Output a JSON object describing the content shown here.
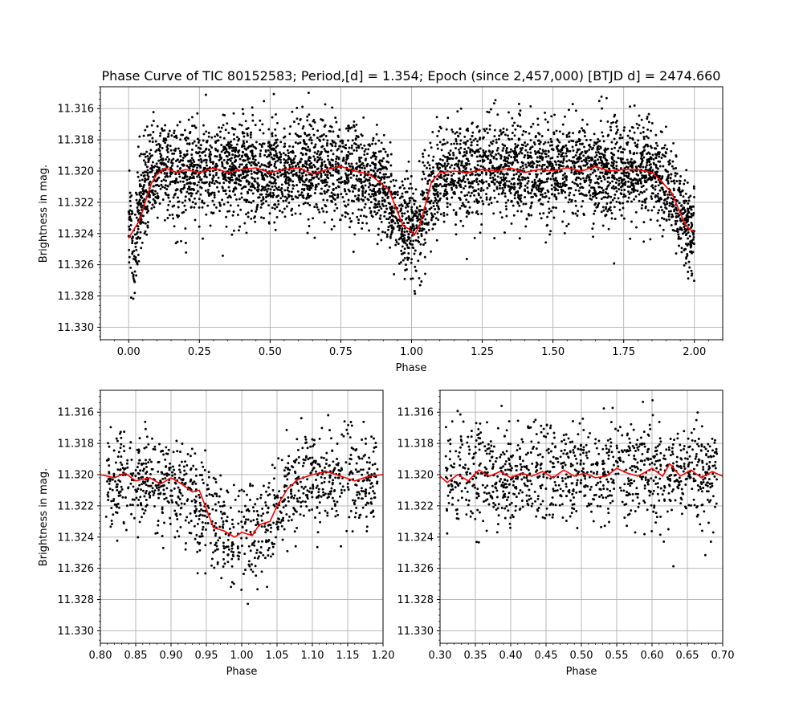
{
  "chart_data": [
    {
      "id": "full",
      "type": "scatter",
      "title": "Phase Curve of TIC 80152583; Period,[d] =   1.354; Epoch (since 2,457,000) [BTJD d] = 2474.660",
      "xlabel": "Phase",
      "ylabel": "Brightness in mag.",
      "xlim": [
        -0.1,
        2.1
      ],
      "ylim": [
        11.3308,
        11.3146
      ],
      "y_inverted": true,
      "xticks": [
        0.0,
        0.25,
        0.5,
        0.75,
        1.0,
        1.25,
        1.5,
        1.75,
        2.0
      ],
      "xtick_labels": [
        "0.00",
        "0.25",
        "0.50",
        "0.75",
        "1.00",
        "1.25",
        "1.50",
        "1.75",
        "2.00"
      ],
      "yticks": [
        11.316,
        11.318,
        11.32,
        11.322,
        11.324,
        11.326,
        11.328,
        11.33
      ],
      "ytick_labels": [
        "11.316",
        "11.318",
        "11.320",
        "11.322",
        "11.324",
        "11.326",
        "11.328",
        "11.330"
      ],
      "grid": true,
      "series": [
        {
          "style": "points",
          "color": "#000000",
          "points": [
            [
              0.01,
              11.3235
            ],
            [
              0.02,
              11.3265
            ],
            [
              0.03,
              11.3232
            ],
            [
              0.05,
              11.3215
            ],
            [
              0.08,
              11.3202
            ],
            [
              0.12,
              11.3195
            ],
            [
              0.2,
              11.3201
            ],
            [
              0.3,
              11.3199
            ],
            [
              0.4,
              11.3198
            ],
            [
              0.5,
              11.3201
            ],
            [
              0.6,
              11.3199
            ],
            [
              0.7,
              11.3198
            ],
            [
              0.8,
              11.32
            ],
            [
              0.9,
              11.3209
            ],
            [
              0.95,
              11.3228
            ],
            [
              0.98,
              11.324
            ],
            [
              1.0,
              11.3236
            ],
            [
              1.02,
              11.3241
            ],
            [
              1.05,
              11.3222
            ],
            [
              1.1,
              11.3203
            ],
            [
              1.2,
              11.3201
            ],
            [
              1.3,
              11.32
            ],
            [
              1.4,
              11.3199
            ],
            [
              1.5,
              11.32
            ],
            [
              1.6,
              11.3198
            ],
            [
              1.7,
              11.32
            ],
            [
              1.8,
              11.3199
            ],
            [
              1.9,
              11.3204
            ],
            [
              1.95,
              11.3224
            ],
            [
              1.98,
              11.3235
            ],
            [
              2.0,
              11.3238
            ]
          ]
        },
        {
          "style": "line",
          "color": "#ff0000",
          "points": [
            [
              0.0,
              11.3243
            ],
            [
              0.02,
              11.3237
            ],
            [
              0.04,
              11.3231
            ],
            [
              0.06,
              11.3219
            ],
            [
              0.08,
              11.3208
            ],
            [
              0.1,
              11.3202
            ],
            [
              0.13,
              11.3198
            ],
            [
              0.17,
              11.3201
            ],
            [
              0.2,
              11.3199
            ],
            [
              0.25,
              11.3201
            ],
            [
              0.3,
              11.3198
            ],
            [
              0.35,
              11.3201
            ],
            [
              0.4,
              11.3199
            ],
            [
              0.45,
              11.3198
            ],
            [
              0.5,
              11.3201
            ],
            [
              0.55,
              11.3199
            ],
            [
              0.6,
              11.3198
            ],
            [
              0.65,
              11.3202
            ],
            [
              0.7,
              11.3199
            ],
            [
              0.75,
              11.3197
            ],
            [
              0.8,
              11.32
            ],
            [
              0.85,
              11.3202
            ],
            [
              0.88,
              11.3206
            ],
            [
              0.92,
              11.3212
            ],
            [
              0.95,
              11.3226
            ],
            [
              0.97,
              11.3235
            ],
            [
              0.99,
              11.3237
            ],
            [
              1.01,
              11.3241
            ],
            [
              1.03,
              11.3234
            ],
            [
              1.05,
              11.3221
            ],
            [
              1.07,
              11.3207
            ],
            [
              1.1,
              11.3201
            ],
            [
              1.15,
              11.32
            ],
            [
              1.2,
              11.3201
            ],
            [
              1.25,
              11.3199
            ],
            [
              1.3,
              11.32
            ],
            [
              1.35,
              11.3198
            ],
            [
              1.4,
              11.3201
            ],
            [
              1.45,
              11.3199
            ],
            [
              1.5,
              11.32
            ],
            [
              1.55,
              11.3198
            ],
            [
              1.6,
              11.32
            ],
            [
              1.65,
              11.3197
            ],
            [
              1.7,
              11.32
            ],
            [
              1.75,
              11.3199
            ],
            [
              1.8,
              11.3199
            ],
            [
              1.85,
              11.3201
            ],
            [
              1.88,
              11.3206
            ],
            [
              1.92,
              11.3214
            ],
            [
              1.95,
              11.3227
            ],
            [
              1.97,
              11.3235
            ],
            [
              1.99,
              11.3238
            ],
            [
              2.0,
              11.3239
            ]
          ]
        }
      ]
    },
    {
      "id": "eclipse-zoom",
      "type": "scatter",
      "title": "",
      "xlabel": "Phase",
      "ylabel": "Brightness in mag.",
      "xlim": [
        0.8,
        1.2
      ],
      "ylim": [
        11.3308,
        11.3146
      ],
      "y_inverted": true,
      "xticks": [
        0.8,
        0.85,
        0.9,
        0.95,
        1.0,
        1.05,
        1.1,
        1.15,
        1.2
      ],
      "xtick_labels": [
        "0.80",
        "0.85",
        "0.90",
        "0.95",
        "1.00",
        "1.05",
        "1.10",
        "1.15",
        "1.20"
      ],
      "yticks": [
        11.316,
        11.318,
        11.32,
        11.322,
        11.324,
        11.326,
        11.328,
        11.33
      ],
      "ytick_labels": [
        "11.316",
        "11.318",
        "11.320",
        "11.322",
        "11.324",
        "11.326",
        "11.328",
        "11.330"
      ],
      "grid": true,
      "series": [
        {
          "style": "points",
          "color": "#000000",
          "points": [
            [
              0.81,
              11.3203
            ],
            [
              0.85,
              11.3204
            ],
            [
              0.9,
              11.3208
            ],
            [
              0.93,
              11.3215
            ],
            [
              0.95,
              11.3225
            ],
            [
              0.97,
              11.3236
            ],
            [
              0.99,
              11.3244
            ],
            [
              1.0,
              11.3241
            ],
            [
              1.02,
              11.3239
            ],
            [
              1.04,
              11.3228
            ],
            [
              1.06,
              11.3214
            ],
            [
              1.08,
              11.3206
            ],
            [
              1.1,
              11.3201
            ],
            [
              1.15,
              11.3202
            ],
            [
              1.19,
              11.3203
            ]
          ]
        },
        {
          "style": "line",
          "color": "#ff0000",
          "points": [
            [
              0.8,
              11.32
            ],
            [
              0.82,
              11.3202
            ],
            [
              0.835,
              11.3199
            ],
            [
              0.85,
              11.3204
            ],
            [
              0.87,
              11.3202
            ],
            [
              0.885,
              11.3206
            ],
            [
              0.9,
              11.3202
            ],
            [
              0.915,
              11.3206
            ],
            [
              0.93,
              11.3211
            ],
            [
              0.94,
              11.321
            ],
            [
              0.95,
              11.3222
            ],
            [
              0.96,
              11.3234
            ],
            [
              0.975,
              11.3236
            ],
            [
              0.99,
              11.324
            ],
            [
              1.0,
              11.3237
            ],
            [
              1.015,
              11.3239
            ],
            [
              1.025,
              11.3232
            ],
            [
              1.04,
              11.323
            ],
            [
              1.05,
              11.322
            ],
            [
              1.065,
              11.3209
            ],
            [
              1.08,
              11.3203
            ],
            [
              1.1,
              11.32
            ],
            [
              1.12,
              11.3198
            ],
            [
              1.14,
              11.3201
            ],
            [
              1.16,
              11.3204
            ],
            [
              1.18,
              11.3201
            ],
            [
              1.2,
              11.32
            ]
          ]
        }
      ]
    },
    {
      "id": "out-of-eclipse-zoom",
      "type": "scatter",
      "title": "",
      "xlabel": "Phase",
      "ylabel": "",
      "xlim": [
        0.3,
        0.7
      ],
      "ylim": [
        11.3308,
        11.3146
      ],
      "y_inverted": true,
      "xticks": [
        0.3,
        0.35,
        0.4,
        0.45,
        0.5,
        0.55,
        0.6,
        0.65,
        0.7
      ],
      "xtick_labels": [
        "0.30",
        "0.35",
        "0.40",
        "0.45",
        "0.50",
        "0.55",
        "0.60",
        "0.65",
        "0.70"
      ],
      "yticks": [
        11.316,
        11.318,
        11.32,
        11.322,
        11.324,
        11.326,
        11.328,
        11.33
      ],
      "ytick_labels": [
        "11.316",
        "11.318",
        "11.320",
        "11.322",
        "11.324",
        "11.326",
        "11.328",
        "11.330"
      ],
      "grid": true,
      "series": [
        {
          "style": "points",
          "color": "#000000",
          "points": [
            [
              0.31,
              11.32
            ],
            [
              0.35,
              11.3198
            ],
            [
              0.4,
              11.3201
            ],
            [
              0.45,
              11.3199
            ],
            [
              0.5,
              11.3201
            ],
            [
              0.55,
              11.3198
            ],
            [
              0.6,
              11.32
            ],
            [
              0.65,
              11.3199
            ],
            [
              0.69,
              11.3201
            ]
          ]
        },
        {
          "style": "line",
          "color": "#ff0000",
          "points": [
            [
              0.3,
              11.3201
            ],
            [
              0.31,
              11.3205
            ],
            [
              0.325,
              11.32
            ],
            [
              0.34,
              11.3204
            ],
            [
              0.355,
              11.3197
            ],
            [
              0.37,
              11.3201
            ],
            [
              0.385,
              11.3198
            ],
            [
              0.4,
              11.3202
            ],
            [
              0.415,
              11.3199
            ],
            [
              0.43,
              11.3201
            ],
            [
              0.445,
              11.3198
            ],
            [
              0.46,
              11.3202
            ],
            [
              0.475,
              11.3197
            ],
            [
              0.49,
              11.3201
            ],
            [
              0.505,
              11.3199
            ],
            [
              0.52,
              11.3202
            ],
            [
              0.535,
              11.3201
            ],
            [
              0.55,
              11.3196
            ],
            [
              0.565,
              11.3199
            ],
            [
              0.58,
              11.3201
            ],
            [
              0.6,
              11.3196
            ],
            [
              0.615,
              11.3201
            ],
            [
              0.625,
              11.3193
            ],
            [
              0.64,
              11.3201
            ],
            [
              0.655,
              11.3197
            ],
            [
              0.67,
              11.3202
            ],
            [
              0.685,
              11.3198
            ],
            [
              0.7,
              11.3201
            ]
          ]
        }
      ]
    }
  ]
}
